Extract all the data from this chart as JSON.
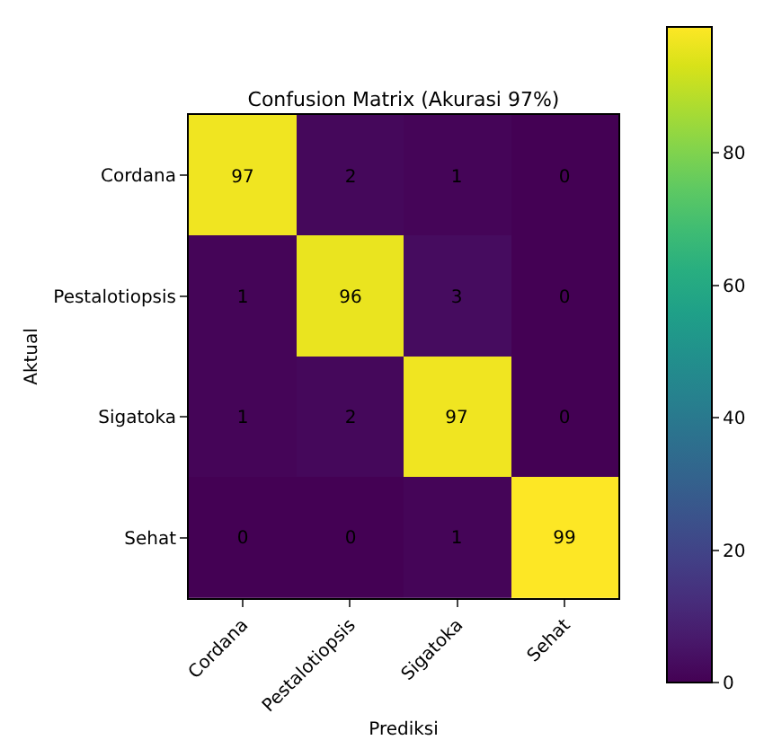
{
  "chart_data": {
    "type": "heatmap",
    "title": "Confusion Matrix (Akurasi 97%)",
    "xlabel": "Prediksi",
    "ylabel": "Aktual",
    "categories": [
      "Cordana",
      "Pestalotiopsis",
      "Sigatoka",
      "Sehat"
    ],
    "y_categories": [
      "Cordana",
      "Pestalotiopsis",
      "Sigatoka",
      "Sehat"
    ],
    "cells": [
      [
        97,
        2,
        1,
        0
      ],
      [
        1,
        96,
        3,
        0
      ],
      [
        1,
        2,
        97,
        0
      ],
      [
        0,
        0,
        1,
        99
      ]
    ],
    "clim": [
      0,
      99
    ],
    "cticks": [
      0,
      20,
      40,
      60,
      80
    ],
    "data_labels": true
  }
}
